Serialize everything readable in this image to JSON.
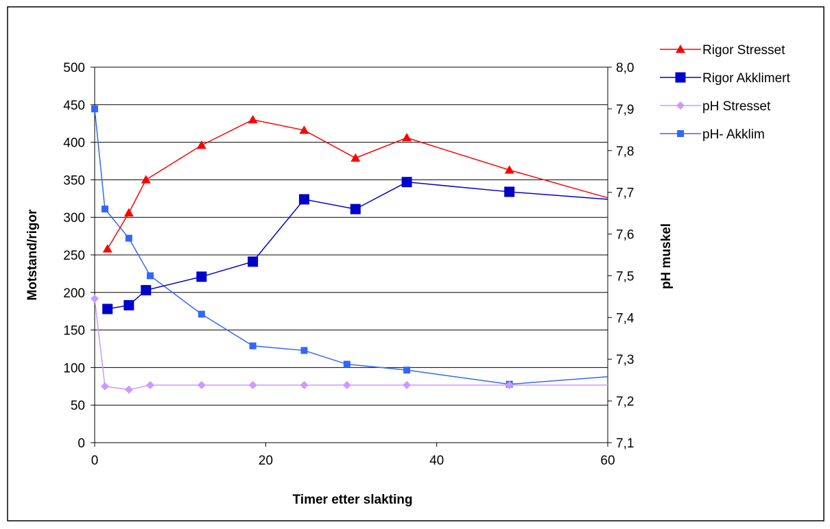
{
  "chart_data": {
    "type": "line",
    "title": "",
    "xlabel": "Timer etter slakting",
    "ylabel": "Motstand/rigor",
    "y2label": "pH muskel",
    "xlim": [
      0,
      60
    ],
    "ylim": [
      0,
      500
    ],
    "y2lim": [
      7.1,
      8.0
    ],
    "x_ticks": [
      "0",
      "20",
      "40",
      "60"
    ],
    "x_tick_values": [
      0,
      20,
      40,
      60
    ],
    "y_ticks": [
      "0",
      "50",
      "100",
      "150",
      "200",
      "250",
      "300",
      "350",
      "400",
      "450",
      "500"
    ],
    "y_tick_values": [
      0,
      50,
      100,
      150,
      200,
      250,
      300,
      350,
      400,
      450,
      500
    ],
    "y2_ticks": [
      "7,1",
      "7,2",
      "7,3",
      "7,4",
      "7,5",
      "7,6",
      "7,7",
      "7,8",
      "7,9",
      "8,0"
    ],
    "y2_tick_values": [
      7.1,
      7.2,
      7.3,
      7.4,
      7.5,
      7.6,
      7.7,
      7.8,
      7.9,
      8.0
    ],
    "grid": "horizontal",
    "legend_position": "top-right",
    "series": [
      {
        "name": "Rigor Stresset",
        "axis": "left",
        "color": "#ff0000",
        "marker": "triangle",
        "points": [
          [
            1.5,
            258
          ],
          [
            4,
            306
          ],
          [
            6,
            350
          ],
          [
            12.5,
            396
          ],
          [
            18.5,
            430
          ],
          [
            24.5,
            416
          ],
          [
            30.5,
            379
          ],
          [
            36.5,
            406
          ],
          [
            48.5,
            363
          ],
          [
            60,
            326
          ]
        ]
      },
      {
        "name": "Rigor Akklimert",
        "axis": "left",
        "color": "#0000cc",
        "marker": "square",
        "points": [
          [
            1.5,
            178
          ],
          [
            4,
            183
          ],
          [
            6,
            203
          ],
          [
            12.5,
            221
          ],
          [
            18.5,
            241
          ],
          [
            24.5,
            324
          ],
          [
            30.5,
            311
          ],
          [
            36.5,
            347
          ],
          [
            48.5,
            334
          ],
          [
            60,
            324
          ]
        ]
      },
      {
        "name": "pH Stresset",
        "axis": "right",
        "color": "#cc99ff",
        "marker": "diamond",
        "points": [
          [
            0,
            7.445
          ],
          [
            1.2,
            7.235
          ],
          [
            4,
            7.227
          ],
          [
            6.5,
            7.238
          ],
          [
            12.5,
            7.238
          ],
          [
            18.5,
            7.238
          ],
          [
            24.5,
            7.238
          ],
          [
            29.5,
            7.238
          ],
          [
            36.5,
            7.238
          ],
          [
            48.5,
            7.238
          ],
          [
            60,
            7.238
          ]
        ]
      },
      {
        "name": "pH- Akklim",
        "axis": "right",
        "color": "#3366ff",
        "marker": "small-square",
        "points": [
          [
            0,
            7.9
          ],
          [
            1.2,
            7.66
          ],
          [
            4,
            7.59
          ],
          [
            6.5,
            7.5
          ],
          [
            12.5,
            7.408
          ],
          [
            18.5,
            7.332
          ],
          [
            24.5,
            7.321
          ],
          [
            29.5,
            7.288
          ],
          [
            36.5,
            7.274
          ],
          [
            48.5,
            7.24
          ],
          [
            60,
            7.258
          ]
        ]
      }
    ]
  }
}
